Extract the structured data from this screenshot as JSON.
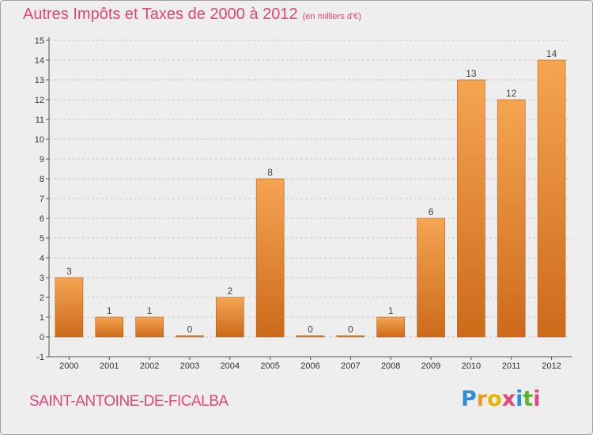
{
  "header": {
    "title": "Autres Impôts et Taxes de 2000 à 2012",
    "subtitle": "(en milliers d'€)"
  },
  "footer": {
    "commune": "SAINT-ANTOINE-DE-FICALBA",
    "logo": {
      "letters": [
        "P",
        "r",
        "o",
        "x",
        "i",
        "t",
        "i"
      ],
      "colors": [
        "#2a8fd6",
        "#f09a1a",
        "#e8b400",
        "#e0457b",
        "#2a8fd6",
        "#5db52a",
        "#e0457b"
      ]
    }
  },
  "colors": {
    "bar_top": "#f5a552",
    "bar_bottom": "#cc6a1a",
    "grid": "#c8c8c8",
    "text_accent": "#e0457b"
  },
  "chart_data": {
    "type": "bar",
    "title": "Autres Impôts et Taxes de 2000 à 2012",
    "categories": [
      "2000",
      "2001",
      "2002",
      "2003",
      "2004",
      "2005",
      "2006",
      "2007",
      "2008",
      "2009",
      "2010",
      "2011",
      "2012"
    ],
    "values": [
      3,
      1,
      1,
      0,
      2,
      8,
      0,
      0,
      1,
      6,
      13,
      12,
      14
    ],
    "yticks": [
      "-1",
      "0",
      "1",
      "2",
      "3",
      "4",
      "5",
      "6",
      "7",
      "8",
      "9",
      "10",
      "11",
      "12",
      "13",
      "14",
      "15"
    ],
    "ylim": [
      -1,
      15
    ],
    "grid": true,
    "legend": "none"
  }
}
